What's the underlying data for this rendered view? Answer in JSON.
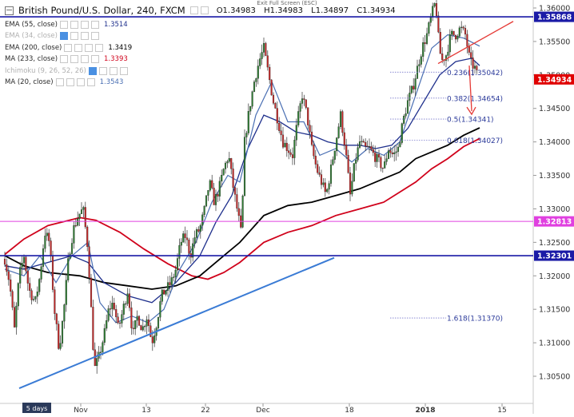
{
  "header": {
    "title": "British Pound/U.S. Dollar, 240, FXCM",
    "exit_fullscreen": "Exit Full Screen (ESC)",
    "ohlc": {
      "open": "O1.34983",
      "high": "H1.34983",
      "low": "L1.34897",
      "close": "C1.34934"
    }
  },
  "indicators": [
    {
      "label": "EMA (55, close)",
      "value": "1.3514",
      "value_color": "#1e2f8c",
      "faded": false,
      "boxes": 4,
      "blue_box": false
    },
    {
      "label": "EMA (34, close)",
      "value": "",
      "value_color": "#1e2f8c",
      "faded": true,
      "boxes": 4,
      "blue_box": true
    },
    {
      "label": "EMA (200, close)",
      "value": "1.3419",
      "value_color": "#000000",
      "faded": false,
      "boxes": 4,
      "blue_box": false
    },
    {
      "label": "MA (233, close)",
      "value": "1.3393",
      "value_color": "#d0021b",
      "faded": false,
      "boxes": 4,
      "blue_box": false
    },
    {
      "label": "Ichimoku (9, 26, 52, 26)",
      "value": "",
      "value_color": "#999999",
      "faded": true,
      "boxes": 4,
      "blue_box": true
    },
    {
      "label": "MA (20, close)",
      "value": "1.3543",
      "value_color": "#4a6fb3",
      "faded": false,
      "boxes": 4,
      "blue_box": false
    }
  ],
  "chart_data": {
    "type": "candlestick",
    "symbol": "British Pound/U.S. Dollar",
    "timeframe": "240",
    "source": "FXCM",
    "x_tick_labels": [
      "Nov",
      "13",
      "22",
      "Dec",
      "18",
      "2018",
      "15"
    ],
    "x_start_label": "5 days",
    "ylim": [
      1.3005,
      1.3625
    ],
    "y_ticks": [
      1.305,
      1.31,
      1.315,
      1.32,
      1.325,
      1.33,
      1.335,
      1.34,
      1.345,
      1.35,
      1.355,
      1.36
    ],
    "y_tick_labels": [
      "1.30500",
      "1.31000",
      "1.31500",
      "1.32000",
      "1.32500",
      "1.33000",
      "1.33500",
      "1.34000",
      "1.34500",
      "1.35000",
      "1.35500",
      "1.36000"
    ],
    "horizontal_lines": [
      {
        "value": 1.35868,
        "label": "1.35868",
        "color": "#1a1aa6"
      },
      {
        "value": 1.32813,
        "label": "1.32813",
        "color": "#e040e0"
      },
      {
        "value": 1.32301,
        "label": "1.32301",
        "color": "#1a1aa6"
      }
    ],
    "last_price": {
      "value": 1.34934,
      "label": "1.34934",
      "color": "#e00000"
    },
    "fib_levels": [
      {
        "label": "0.236(1.35042)",
        "value": 1.35042
      },
      {
        "label": "0.382(1.34654)",
        "value": 1.34654
      },
      {
        "label": "0.5(1.34341)",
        "value": 1.34341
      },
      {
        "label": "0.618(1.34027)",
        "value": 1.34027
      },
      {
        "label": "1.618(1.31370)",
        "value": 1.3137
      }
    ],
    "series": [
      {
        "name": "EMA (55, close)",
        "color": "#1e2f8c",
        "last": 1.3514
      },
      {
        "name": "EMA (200, close)",
        "color": "#000000",
        "last": 1.3419
      },
      {
        "name": "MA (233, close)",
        "color": "#d0021b",
        "last": 1.3393
      },
      {
        "name": "MA (20, close)",
        "color": "#4a6fb3",
        "last": 1.3543
      }
    ],
    "colors": {
      "up": "#2e7d32",
      "down": "#c62828",
      "trendline": "#3a7bd5",
      "channel": "#e53935",
      "arrow": "#e53935"
    }
  }
}
